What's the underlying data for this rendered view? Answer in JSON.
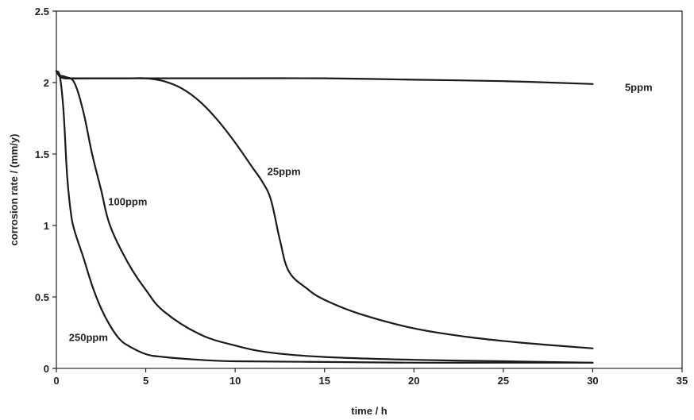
{
  "chart_data": {
    "type": "line",
    "xlabel": "time / h",
    "ylabel": "corrosion rate / (mm/y)",
    "xlim": [
      0,
      35
    ],
    "ylim": [
      0,
      2.5
    ],
    "xticks": [
      0,
      5,
      10,
      15,
      20,
      25,
      30,
      35
    ],
    "yticks": [
      0,
      0.5,
      1,
      1.5,
      2,
      2.5
    ],
    "ytick_labels": [
      "0",
      "0.5",
      "1",
      "1.5",
      "2",
      "2.5"
    ],
    "grid": false,
    "legend": "none",
    "series": [
      {
        "name": "5ppm",
        "x": [
          0,
          0.2,
          0.5,
          1,
          5,
          10,
          15,
          20,
          25,
          30
        ],
        "y": [
          2.08,
          2.04,
          2.03,
          2.03,
          2.03,
          2.03,
          2.03,
          2.02,
          2.01,
          1.99
        ]
      },
      {
        "name": "25ppm",
        "x": [
          0,
          0.2,
          0.5,
          2,
          4,
          5,
          6,
          7,
          8,
          9,
          10,
          11,
          11.5,
          12,
          12.5,
          13,
          14,
          15,
          17,
          20,
          23,
          26,
          30
        ],
        "y": [
          2.08,
          2.05,
          2.03,
          2.03,
          2.03,
          2.03,
          2.01,
          1.96,
          1.87,
          1.74,
          1.58,
          1.4,
          1.31,
          1.18,
          0.9,
          0.68,
          0.56,
          0.48,
          0.38,
          0.28,
          0.22,
          0.18,
          0.14
        ]
      },
      {
        "name": "100ppm",
        "x": [
          0,
          0.2,
          0.5,
          1,
          1.5,
          2,
          2.5,
          3,
          4,
          5,
          6,
          8,
          10,
          12,
          15,
          20,
          25,
          30
        ],
        "y": [
          2.08,
          2.05,
          2.04,
          2.0,
          1.8,
          1.5,
          1.25,
          1.0,
          0.74,
          0.55,
          0.4,
          0.24,
          0.16,
          0.11,
          0.08,
          0.06,
          0.05,
          0.04
        ]
      },
      {
        "name": "250ppm",
        "x": [
          0,
          0.2,
          0.4,
          0.6,
          0.8,
          1,
          1.5,
          2,
          2.5,
          3,
          3.5,
          4,
          5,
          6,
          8,
          10,
          15,
          20,
          25,
          30
        ],
        "y": [
          2.08,
          2.04,
          1.8,
          1.35,
          1.1,
          0.97,
          0.78,
          0.58,
          0.42,
          0.3,
          0.21,
          0.16,
          0.1,
          0.08,
          0.06,
          0.05,
          0.045,
          0.04,
          0.04,
          0.04
        ]
      }
    ],
    "annotations": [
      {
        "text": "5ppm",
        "x": 31.8,
        "y": 1.97
      },
      {
        "text": "25ppm",
        "x": 11.8,
        "y": 1.38
      },
      {
        "text": "100ppm",
        "x": 2.9,
        "y": 1.17
      },
      {
        "text": "250ppm",
        "x": 0.7,
        "y": 0.22
      }
    ]
  }
}
